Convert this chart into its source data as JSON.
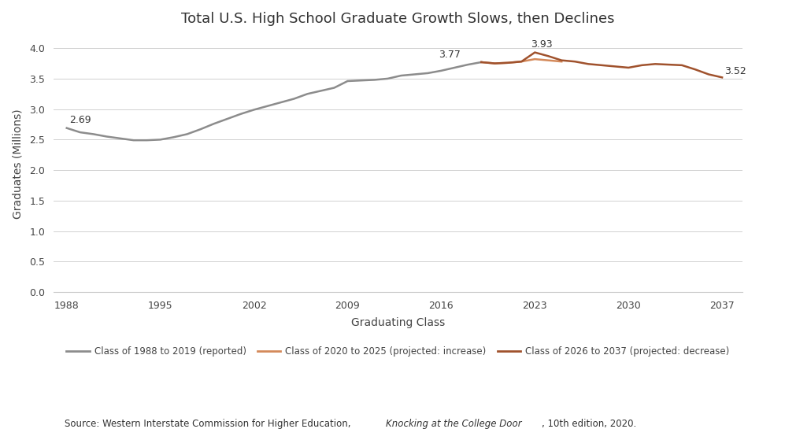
{
  "title": "Total U.S. High School Graduate Growth Slows, then Declines",
  "xlabel": "Graduating Class",
  "ylabel": "Graduates (Millions)",
  "xlim": [
    1987,
    2038.5
  ],
  "ylim": [
    0,
    4.2
  ],
  "yticks": [
    0.0,
    0.5,
    1.0,
    1.5,
    2.0,
    2.5,
    3.0,
    3.5,
    4.0
  ],
  "xticks": [
    1988,
    1995,
    2002,
    2009,
    2016,
    2023,
    2030,
    2037
  ],
  "color_reported": "#8c8c8c",
  "color_increase": "#d4895a",
  "color_decrease": "#a0522d",
  "series_reported_x": [
    1988,
    1989,
    1990,
    1991,
    1992,
    1993,
    1994,
    1995,
    1996,
    1997,
    1998,
    1999,
    2000,
    2001,
    2002,
    2003,
    2004,
    2005,
    2006,
    2007,
    2008,
    2009,
    2010,
    2011,
    2012,
    2013,
    2014,
    2015,
    2016,
    2017,
    2018,
    2019
  ],
  "series_reported_y": [
    2.69,
    2.62,
    2.59,
    2.55,
    2.52,
    2.49,
    2.49,
    2.5,
    2.54,
    2.59,
    2.67,
    2.76,
    2.84,
    2.92,
    2.99,
    3.05,
    3.11,
    3.17,
    3.25,
    3.3,
    3.35,
    3.46,
    3.47,
    3.48,
    3.5,
    3.55,
    3.57,
    3.59,
    3.63,
    3.68,
    3.73,
    3.77
  ],
  "series_increase_x": [
    2019,
    2020,
    2021,
    2022,
    2023,
    2024,
    2025
  ],
  "series_increase_y": [
    3.77,
    3.75,
    3.76,
    3.78,
    3.82,
    3.8,
    3.78
  ],
  "series_decrease_x": [
    2019,
    2020,
    2021,
    2022,
    2023,
    2024,
    2025,
    2026,
    2027,
    2028,
    2029,
    2030,
    2031,
    2032,
    2033,
    2034,
    2035,
    2036,
    2037
  ],
  "series_decrease_y": [
    3.77,
    3.75,
    3.76,
    3.78,
    3.93,
    3.87,
    3.8,
    3.78,
    3.74,
    3.72,
    3.7,
    3.68,
    3.72,
    3.74,
    3.73,
    3.72,
    3.65,
    3.57,
    3.52
  ],
  "ann_1988_label": "2.69",
  "ann_1988_x": 1988,
  "ann_1988_y": 2.69,
  "ann_2019_label": "3.77",
  "ann_2019_x": 2019,
  "ann_2019_y": 3.77,
  "ann_peak_label": "3.93",
  "ann_peak_x": 2023,
  "ann_peak_y": 3.93,
  "ann_2037_label": "3.52",
  "ann_2037_x": 2037,
  "ann_2037_y": 3.52,
  "legend_labels": [
    "Class of 1988 to 2019 (reported)",
    "Class of 2020 to 2025 (projected: increase)",
    "Class of 2026 to 2037 (projected: decrease)"
  ]
}
